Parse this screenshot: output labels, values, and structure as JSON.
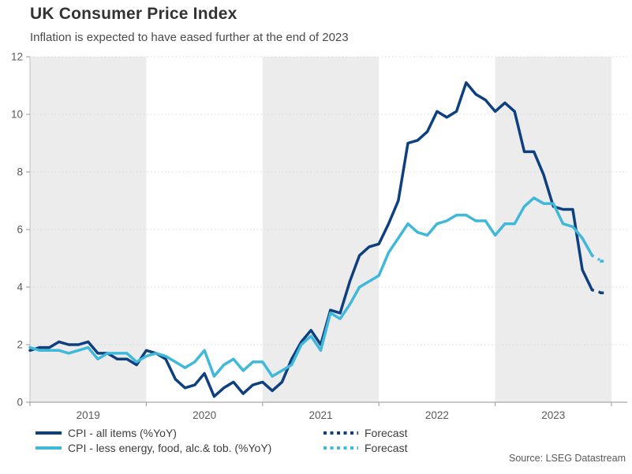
{
  "header": {
    "title": "UK Consumer Price Index",
    "subtitle": "Inflation is expected to have eased further at the end of 2023"
  },
  "source": "Source: LSEG Datastream",
  "colors": {
    "cpi_all": "#0e4080",
    "cpi_core": "#3fb8da",
    "band": "#ececec",
    "gridline": "#d9d9d9",
    "axis": "#a6a6a6",
    "tick_label": "#595959"
  },
  "legend": [
    {
      "label": "CPI - all items (%YoY)",
      "series": "cpi_all",
      "style": "solid"
    },
    {
      "label": "CPI - less energy, food, alc.& tob. (%YoY)",
      "series": "cpi_core",
      "style": "solid"
    },
    {
      "label": "Forecast",
      "series": "cpi_all",
      "style": "dotted"
    },
    {
      "label": "Forecast",
      "series": "cpi_core",
      "style": "dotted"
    }
  ],
  "chart_data": {
    "type": "line",
    "title": "UK Consumer Price Index",
    "x_start": "2019-01",
    "x_freq": "monthly",
    "x_tick_labels": [
      "2019",
      "2020",
      "2021",
      "2022",
      "2023"
    ],
    "y_ticks": [
      0,
      2,
      4,
      6,
      8,
      10,
      12
    ],
    "ylim": [
      0,
      12
    ],
    "grid": "horizontal-dotted",
    "background_bands": "alternating-years-gray-on-odd",
    "legend_position": "bottom",
    "series": [
      {
        "name": "CPI - all items (%YoY)",
        "color": "#0e4080",
        "values": [
          1.8,
          1.9,
          1.9,
          2.1,
          2.0,
          2.0,
          2.1,
          1.7,
          1.7,
          1.5,
          1.5,
          1.3,
          1.8,
          1.7,
          1.5,
          0.8,
          0.5,
          0.6,
          1.0,
          0.2,
          0.5,
          0.7,
          0.3,
          0.6,
          0.7,
          0.4,
          0.7,
          1.5,
          2.1,
          2.5,
          2.0,
          3.2,
          3.1,
          4.2,
          5.1,
          5.4,
          5.5,
          6.2,
          7.0,
          9.0,
          9.1,
          9.4,
          10.1,
          9.9,
          10.1,
          11.1,
          10.7,
          10.5,
          10.1,
          10.4,
          10.1,
          8.7,
          8.7,
          7.9,
          6.8,
          6.7,
          6.7,
          4.6,
          3.9
        ],
        "forecast": {
          "label": "Forecast",
          "x": "2023-12",
          "value": 3.8
        }
      },
      {
        "name": "CPI - less energy, food, alc.& tob. (%YoY)",
        "color": "#3fb8da",
        "values": [
          1.9,
          1.8,
          1.8,
          1.8,
          1.7,
          1.8,
          1.9,
          1.5,
          1.7,
          1.7,
          1.7,
          1.4,
          1.6,
          1.7,
          1.6,
          1.4,
          1.2,
          1.4,
          1.8,
          0.9,
          1.3,
          1.5,
          1.1,
          1.4,
          1.4,
          0.9,
          1.1,
          1.3,
          2.0,
          2.3,
          1.8,
          3.1,
          2.9,
          3.4,
          4.0,
          4.2,
          4.4,
          5.2,
          5.7,
          6.2,
          5.9,
          5.8,
          6.2,
          6.3,
          6.5,
          6.5,
          6.3,
          6.3,
          5.8,
          6.2,
          6.2,
          6.8,
          7.1,
          6.9,
          6.9,
          6.2,
          6.1,
          5.7,
          5.1
        ],
        "forecast": {
          "label": "Forecast",
          "x": "2023-12",
          "value": 4.9
        }
      }
    ]
  }
}
